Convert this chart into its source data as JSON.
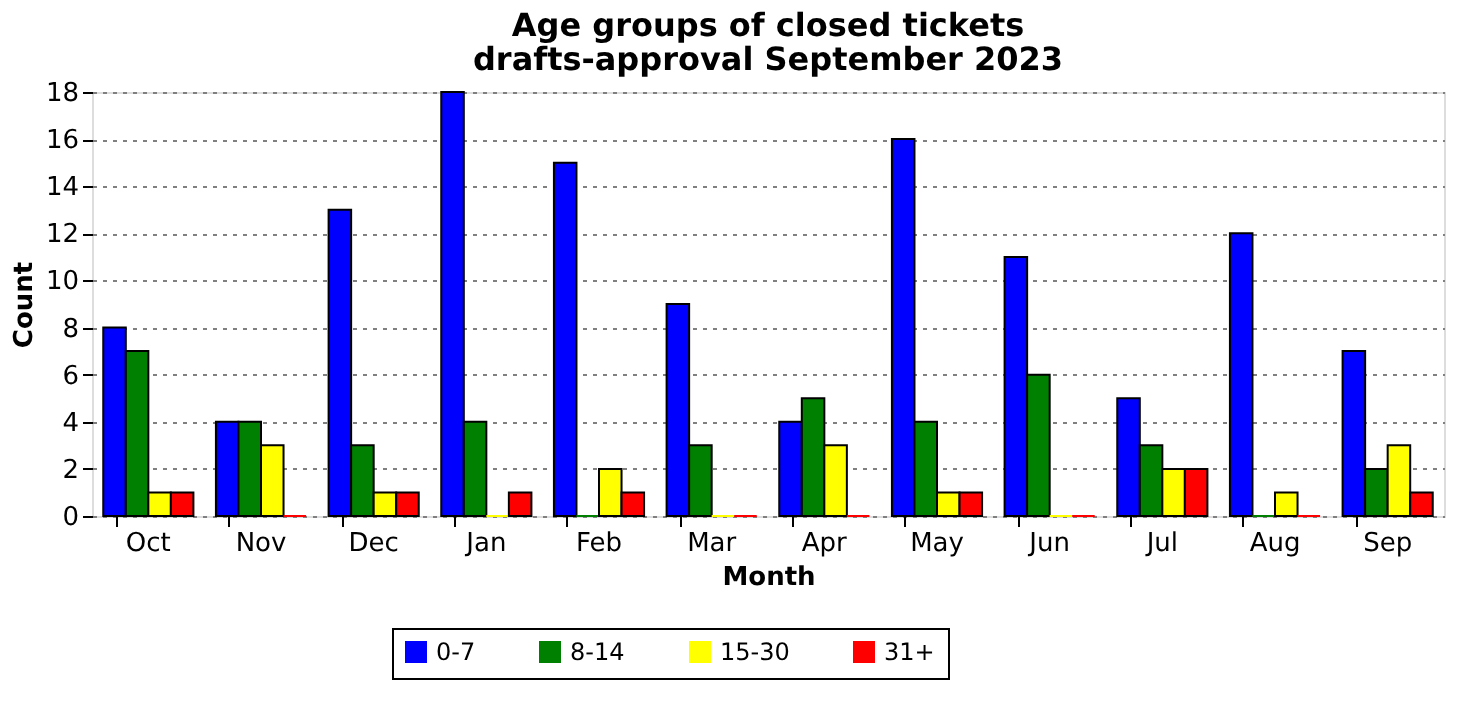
{
  "chart_data": {
    "type": "bar",
    "title": "Age groups of closed tickets",
    "subtitle": "drafts-approval September 2023",
    "xlabel": "Month",
    "ylabel": "Count",
    "categories": [
      "Oct",
      "Nov",
      "Dec",
      "Jan",
      "Feb",
      "Mar",
      "Apr",
      "May",
      "Jun",
      "Jul",
      "Aug",
      "Sep"
    ],
    "series": [
      {
        "name": "0-7",
        "color": "#0000ff",
        "values": [
          8,
          4,
          13,
          18,
          15,
          9,
          4,
          16,
          11,
          5,
          12,
          7
        ]
      },
      {
        "name": "8-14",
        "color": "#008000",
        "values": [
          7,
          4,
          3,
          4,
          0,
          3,
          5,
          4,
          6,
          3,
          0,
          2
        ]
      },
      {
        "name": "15-30",
        "color": "#ffff00",
        "values": [
          1,
          3,
          1,
          0,
          2,
          0,
          3,
          1,
          0,
          2,
          1,
          3
        ]
      },
      {
        "name": "31+",
        "color": "#ff0000",
        "values": [
          1,
          0,
          1,
          1,
          1,
          0,
          0,
          1,
          0,
          2,
          0,
          1
        ]
      }
    ],
    "ylim": [
      0,
      18
    ],
    "yticks": [
      0,
      2,
      4,
      6,
      8,
      10,
      12,
      14,
      16,
      18
    ],
    "grid": "y",
    "legend": "bottom"
  }
}
